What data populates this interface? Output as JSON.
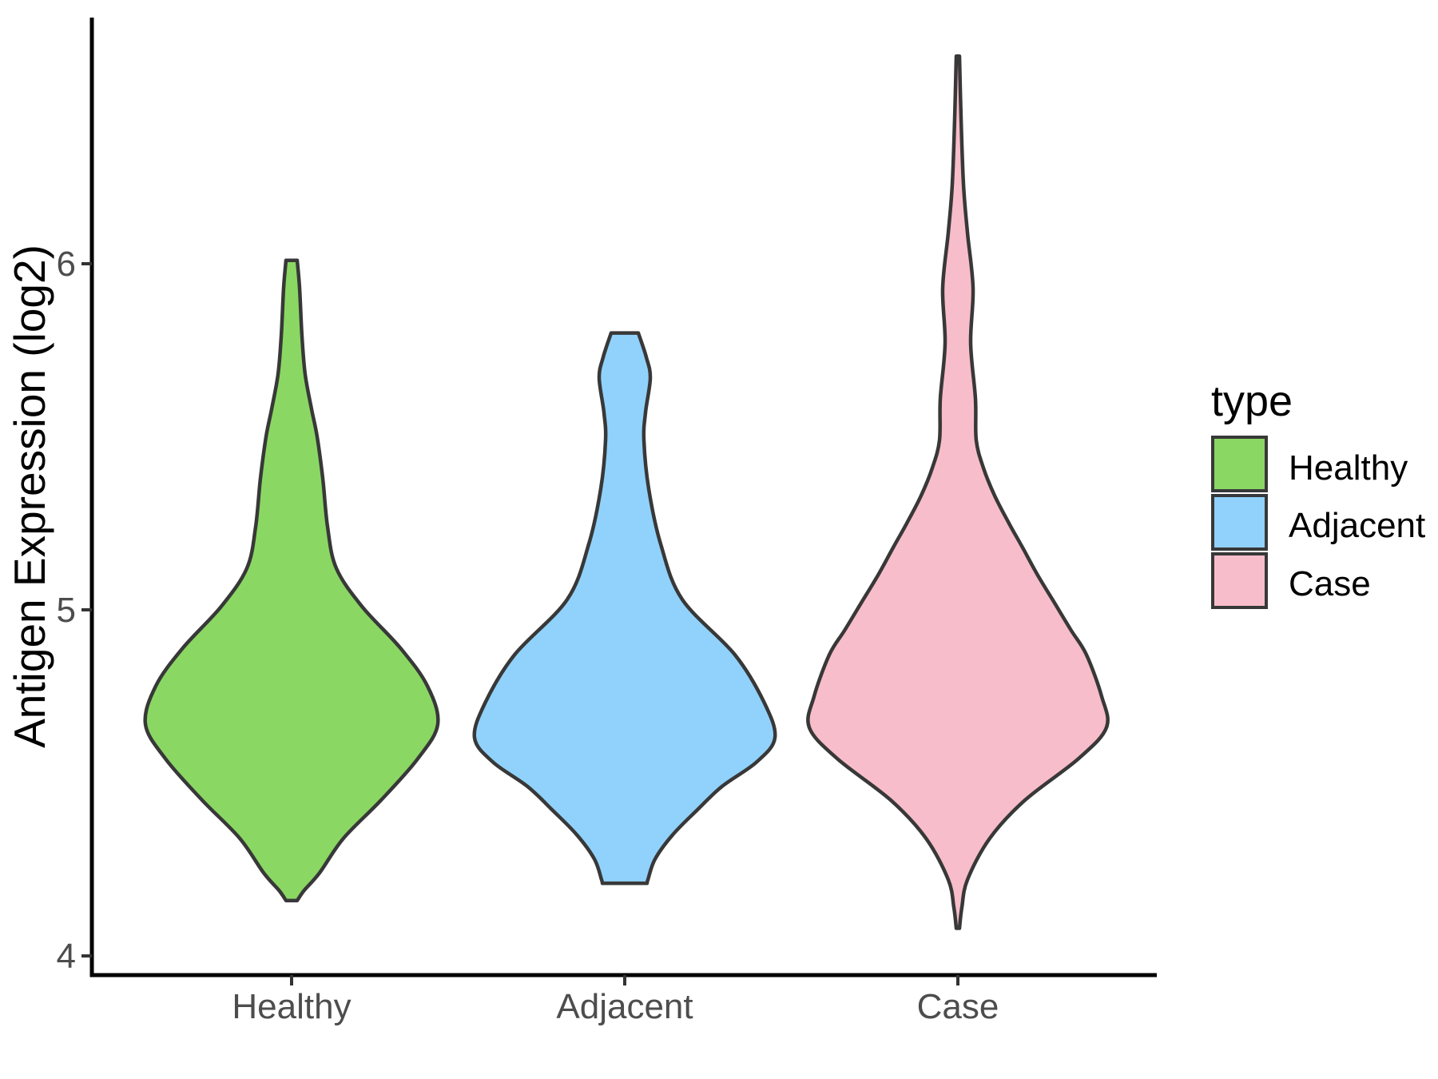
{
  "chart_data": {
    "type": "violin",
    "title": "",
    "xlabel": "",
    "ylabel": "Antigen Expression (log2)",
    "categories": [
      "Healthy",
      "Adjacent",
      "Case"
    ],
    "y_axis": {
      "ticks": [
        4,
        5,
        6
      ],
      "tick_labels": [
        "4",
        "5",
        "6"
      ],
      "range_shown": [
        3.94,
        6.77
      ],
      "grid": false
    },
    "x_axis": {
      "tick_labels": [
        "Healthy",
        "Adjacent",
        "Case"
      ]
    },
    "legend": {
      "title": "type",
      "position": "right",
      "entries": [
        {
          "label": "Healthy",
          "color": "#8AD863"
        },
        {
          "label": "Adjacent",
          "color": "#90D2FB"
        },
        {
          "label": "Case",
          "color": "#F8BDCA"
        }
      ]
    },
    "style": {
      "outline_color": "#383838",
      "axis_line_color": "#000000",
      "tick_mark_color": "#333333",
      "tick_label_color": "#4d4d4d",
      "background": "#ffffff"
    },
    "violins": [
      {
        "category": "Healthy",
        "color": "#8AD863",
        "min_value": 4.16,
        "max_value": 6.01,
        "peak_value": 4.67,
        "profile_units": "[expression_log2_value, halfwidth_px]",
        "profile": [
          [
            6.01,
            7
          ],
          [
            5.93,
            10
          ],
          [
            5.79,
            13
          ],
          [
            5.68,
            17
          ],
          [
            5.58,
            25
          ],
          [
            5.5,
            32
          ],
          [
            5.38,
            39
          ],
          [
            5.24,
            45
          ],
          [
            5.12,
            56
          ],
          [
            5.01,
            88
          ],
          [
            4.89,
            136
          ],
          [
            4.78,
            170
          ],
          [
            4.67,
            183
          ],
          [
            4.57,
            158
          ],
          [
            4.45,
            112
          ],
          [
            4.34,
            65
          ],
          [
            4.24,
            35
          ],
          [
            4.19,
            16
          ],
          [
            4.16,
            7
          ]
        ]
      },
      {
        "category": "Adjacent",
        "color": "#90D2FB",
        "min_value": 4.21,
        "max_value": 5.8,
        "peak_value": 4.63,
        "profile_units": "[expression_log2_value, halfwidth_px]",
        "profile": [
          [
            5.8,
            17
          ],
          [
            5.73,
            27
          ],
          [
            5.67,
            32
          ],
          [
            5.57,
            26
          ],
          [
            5.49,
            24
          ],
          [
            5.35,
            30
          ],
          [
            5.19,
            45
          ],
          [
            5.03,
            72
          ],
          [
            4.87,
            138
          ],
          [
            4.73,
            175
          ],
          [
            4.63,
            188
          ],
          [
            4.56,
            165
          ],
          [
            4.49,
            122
          ],
          [
            4.42,
            90
          ],
          [
            4.35,
            60
          ],
          [
            4.28,
            38
          ],
          [
            4.22,
            29
          ],
          [
            4.21,
            28
          ]
        ]
      },
      {
        "category": "Case",
        "color": "#F8BDCA",
        "min_value": 4.08,
        "max_value": 6.6,
        "peak_value": 4.66,
        "profile_units": "[expression_log2_value, halfwidth_px]",
        "profile": [
          [
            6.6,
            2
          ],
          [
            6.42,
            4
          ],
          [
            6.23,
            7
          ],
          [
            6.09,
            12
          ],
          [
            5.93,
            19
          ],
          [
            5.77,
            16
          ],
          [
            5.61,
            22
          ],
          [
            5.49,
            23
          ],
          [
            5.41,
            32
          ],
          [
            5.33,
            46
          ],
          [
            5.25,
            64
          ],
          [
            5.18,
            81
          ],
          [
            5.1,
            100
          ],
          [
            5.02,
            121
          ],
          [
            4.94,
            142
          ],
          [
            4.87,
            161
          ],
          [
            4.75,
            180
          ],
          [
            4.66,
            186
          ],
          [
            4.57,
            151
          ],
          [
            4.45,
            84
          ],
          [
            4.34,
            40
          ],
          [
            4.22,
            12
          ],
          [
            4.14,
            5
          ],
          [
            4.08,
            2
          ]
        ]
      }
    ]
  }
}
